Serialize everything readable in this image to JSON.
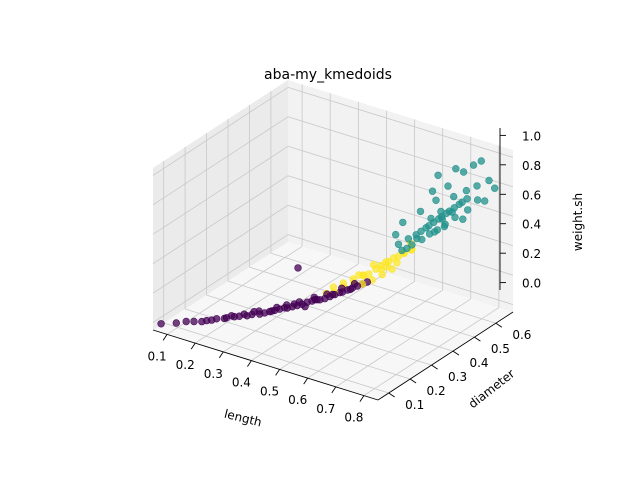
{
  "chart_data": {
    "type": "scatter3d",
    "title": "aba-my_kmedoids",
    "xlabel": "length",
    "ylabel": "diameter",
    "zlabel": "weight.sh",
    "xlim": [
      0.05,
      0.85
    ],
    "ylim": [
      0.05,
      0.68
    ],
    "zlim": [
      -0.05,
      1.05
    ],
    "xticks": [
      "0.1",
      "0.2",
      "0.3",
      "0.4",
      "0.5",
      "0.6",
      "0.7",
      "0.8"
    ],
    "yticks": [
      "0.1",
      "0.2",
      "0.3",
      "0.4",
      "0.5",
      "0.6"
    ],
    "zticks": [
      "0.0",
      "0.2",
      "0.4",
      "0.6",
      "0.8",
      "1.0"
    ],
    "grid": true,
    "colors": [
      "#440154",
      "#21918c",
      "#fde725"
    ],
    "series": [
      {
        "color": "#440154",
        "points": [
          [
            0.075,
            0.055,
            0.002
          ],
          [
            0.11,
            0.08,
            0.005
          ],
          [
            0.13,
            0.1,
            0.008
          ],
          [
            0.15,
            0.11,
            0.01
          ],
          [
            0.17,
            0.12,
            0.012
          ],
          [
            0.19,
            0.14,
            0.015
          ],
          [
            0.2,
            0.15,
            0.02
          ],
          [
            0.22,
            0.16,
            0.025
          ],
          [
            0.24,
            0.18,
            0.03
          ],
          [
            0.25,
            0.19,
            0.03
          ],
          [
            0.27,
            0.2,
            0.035
          ],
          [
            0.28,
            0.21,
            0.04
          ],
          [
            0.3,
            0.22,
            0.045
          ],
          [
            0.31,
            0.23,
            0.05
          ],
          [
            0.32,
            0.24,
            0.055
          ],
          [
            0.33,
            0.25,
            0.06
          ],
          [
            0.34,
            0.26,
            0.065
          ],
          [
            0.35,
            0.27,
            0.07
          ],
          [
            0.36,
            0.27,
            0.075
          ],
          [
            0.37,
            0.28,
            0.08
          ],
          [
            0.38,
            0.29,
            0.085
          ],
          [
            0.39,
            0.3,
            0.09
          ],
          [
            0.4,
            0.31,
            0.1
          ],
          [
            0.41,
            0.32,
            0.105
          ],
          [
            0.42,
            0.33,
            0.11
          ],
          [
            0.43,
            0.33,
            0.115
          ],
          [
            0.44,
            0.34,
            0.12
          ],
          [
            0.45,
            0.35,
            0.13
          ],
          [
            0.46,
            0.36,
            0.14
          ],
          [
            0.47,
            0.37,
            0.15
          ],
          [
            0.48,
            0.37,
            0.16
          ],
          [
            0.49,
            0.38,
            0.17
          ],
          [
            0.5,
            0.39,
            0.18
          ],
          [
            0.51,
            0.4,
            0.19
          ],
          [
            0.52,
            0.41,
            0.2
          ],
          [
            0.53,
            0.42,
            0.21
          ],
          [
            0.22,
            0.17,
            0.02
          ],
          [
            0.26,
            0.2,
            0.04
          ],
          [
            0.29,
            0.23,
            0.05
          ],
          [
            0.32,
            0.25,
            0.05
          ],
          [
            0.35,
            0.28,
            0.08
          ],
          [
            0.38,
            0.3,
            0.1
          ],
          [
            0.41,
            0.33,
            0.12
          ],
          [
            0.44,
            0.35,
            0.14
          ],
          [
            0.47,
            0.38,
            0.17
          ],
          [
            0.5,
            0.4,
            0.2
          ],
          [
            0.18,
            0.13,
            0.015
          ],
          [
            0.23,
            0.18,
            0.03
          ],
          [
            0.28,
            0.22,
            0.05
          ],
          [
            0.33,
            0.26,
            0.07
          ],
          [
            0.37,
            0.29,
            0.09
          ],
          [
            0.42,
            0.32,
            0.12
          ],
          [
            0.46,
            0.35,
            0.15
          ],
          [
            0.5,
            0.38,
            0.18
          ],
          [
            0.36,
            0.32,
            0.3
          ],
          [
            0.4,
            0.3,
            0.08
          ]
        ]
      },
      {
        "color": "#fde725",
        "points": [
          [
            0.44,
            0.38,
            0.16
          ],
          [
            0.46,
            0.4,
            0.18
          ],
          [
            0.48,
            0.42,
            0.2
          ],
          [
            0.5,
            0.44,
            0.22
          ],
          [
            0.52,
            0.44,
            0.24
          ],
          [
            0.53,
            0.46,
            0.26
          ],
          [
            0.54,
            0.47,
            0.28
          ],
          [
            0.55,
            0.48,
            0.3
          ],
          [
            0.56,
            0.48,
            0.31
          ],
          [
            0.57,
            0.49,
            0.33
          ],
          [
            0.58,
            0.5,
            0.34
          ],
          [
            0.59,
            0.51,
            0.36
          ],
          [
            0.6,
            0.5,
            0.37
          ],
          [
            0.58,
            0.47,
            0.28
          ],
          [
            0.56,
            0.45,
            0.25
          ],
          [
            0.54,
            0.43,
            0.22
          ],
          [
            0.52,
            0.41,
            0.2
          ],
          [
            0.5,
            0.42,
            0.24
          ],
          [
            0.53,
            0.45,
            0.3
          ],
          [
            0.55,
            0.46,
            0.27
          ],
          [
            0.57,
            0.46,
            0.3
          ],
          [
            0.59,
            0.48,
            0.32
          ],
          [
            0.49,
            0.41,
            0.19
          ],
          [
            0.51,
            0.43,
            0.23
          ],
          [
            0.45,
            0.37,
            0.14
          ],
          [
            0.47,
            0.39,
            0.17
          ],
          [
            0.61,
            0.52,
            0.38
          ],
          [
            0.62,
            0.51,
            0.4
          ],
          [
            0.6,
            0.53,
            0.41
          ],
          [
            0.43,
            0.36,
            0.13
          ]
        ]
      },
      {
        "color": "#21918c",
        "points": [
          [
            0.58,
            0.5,
            0.42
          ],
          [
            0.6,
            0.52,
            0.45
          ],
          [
            0.62,
            0.53,
            0.48
          ],
          [
            0.63,
            0.54,
            0.5
          ],
          [
            0.64,
            0.55,
            0.52
          ],
          [
            0.65,
            0.55,
            0.54
          ],
          [
            0.66,
            0.56,
            0.56
          ],
          [
            0.67,
            0.57,
            0.58
          ],
          [
            0.68,
            0.57,
            0.6
          ],
          [
            0.69,
            0.58,
            0.62
          ],
          [
            0.7,
            0.58,
            0.64
          ],
          [
            0.71,
            0.59,
            0.66
          ],
          [
            0.72,
            0.6,
            0.68
          ],
          [
            0.73,
            0.6,
            0.7
          ],
          [
            0.74,
            0.61,
            0.72
          ],
          [
            0.66,
            0.54,
            0.5
          ],
          [
            0.68,
            0.55,
            0.53
          ],
          [
            0.7,
            0.56,
            0.57
          ],
          [
            0.72,
            0.58,
            0.61
          ],
          [
            0.64,
            0.53,
            0.46
          ],
          [
            0.62,
            0.51,
            0.43
          ],
          [
            0.69,
            0.56,
            0.6
          ],
          [
            0.71,
            0.58,
            0.64
          ],
          [
            0.65,
            0.56,
            0.58
          ],
          [
            0.67,
            0.58,
            0.62
          ],
          [
            0.6,
            0.49,
            0.4
          ],
          [
            0.63,
            0.52,
            0.47
          ],
          [
            0.73,
            0.62,
            0.76
          ],
          [
            0.76,
            0.63,
            0.8
          ],
          [
            0.7,
            0.6,
            0.72
          ],
          [
            0.75,
            0.6,
            0.66
          ],
          [
            0.77,
            0.62,
            0.72
          ],
          [
            0.78,
            0.64,
            0.7
          ],
          [
            0.74,
            0.59,
            0.6
          ],
          [
            0.66,
            0.57,
            0.7
          ],
          [
            0.68,
            0.6,
            0.78
          ],
          [
            0.62,
            0.55,
            0.62
          ],
          [
            0.64,
            0.58,
            0.74
          ],
          [
            0.58,
            0.52,
            0.55
          ],
          [
            0.57,
            0.5,
            0.48
          ],
          [
            0.8,
            0.66,
            0.78
          ],
          [
            0.72,
            0.62,
            0.88
          ],
          [
            0.74,
            0.64,
            0.92
          ],
          [
            0.7,
            0.61,
            0.9
          ],
          [
            0.66,
            0.58,
            0.86
          ],
          [
            0.76,
            0.65,
            0.95
          ],
          [
            0.78,
            0.66,
            0.82
          ],
          [
            0.69,
            0.57,
            0.54
          ],
          [
            0.61,
            0.5,
            0.41
          ],
          [
            0.67,
            0.55,
            0.51
          ]
        ]
      }
    ]
  }
}
